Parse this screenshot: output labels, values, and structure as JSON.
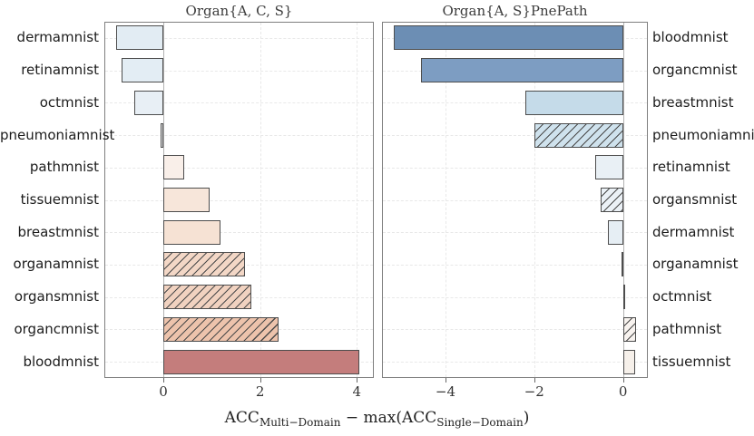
{
  "figure": {
    "background": "#ffffff",
    "xlabel_parts": [
      {
        "text": "ACC",
        "sub": false
      },
      {
        "text": "Multi−Domain",
        "sub": true
      },
      {
        "text": " − max(ACC",
        "sub": false
      },
      {
        "text": "Single−Domain",
        "sub": true
      },
      {
        "text": ")",
        "sub": false
      }
    ]
  },
  "style": {
    "panel_border": "#7f7f7f",
    "bar_border": "#4d4d4d",
    "hatch_line": "#4a4a4a",
    "grid_color": "#e8e8e8",
    "zero_line": "#b2b2b2",
    "tick_color": "#666666",
    "title_color": "#3c3c3c",
    "label_color": "#1c1c1c"
  },
  "chart_data": [
    {
      "type": "bar",
      "orientation": "horizontal",
      "title": "Organ{A, C, S}",
      "label_side": "left",
      "xlim": [
        -1.22,
        4.35
      ],
      "grid": true,
      "xticks": [
        {
          "v": 0,
          "label": "0"
        },
        {
          "v": 2,
          "label": "2"
        },
        {
          "v": 4,
          "label": "4"
        }
      ],
      "bars": [
        {
          "label": "dermamnist",
          "value": -0.97,
          "color": "#e2ecf3",
          "hatch": false
        },
        {
          "label": "retinamnist",
          "value": -0.86,
          "color": "#e3edf4",
          "hatch": false
        },
        {
          "label": "octmnist",
          "value": -0.61,
          "color": "#e8eff5",
          "hatch": false
        },
        {
          "label": "pneumoniamnist",
          "value": -0.06,
          "color": "#f4f6f7",
          "hatch": false
        },
        {
          "label": "pathmnist",
          "value": 0.43,
          "color": "#f9efe9",
          "hatch": false
        },
        {
          "label": "tissuemnist",
          "value": 0.95,
          "color": "#f7e6da",
          "hatch": false
        },
        {
          "label": "breastmnist",
          "value": 1.18,
          "color": "#f6e2d4",
          "hatch": false
        },
        {
          "label": "organamnist",
          "value": 1.69,
          "color": "#f3d7c6",
          "hatch": true
        },
        {
          "label": "organsmnist",
          "value": 1.81,
          "color": "#f1d2c0",
          "hatch": true
        },
        {
          "label": "organcmnist",
          "value": 2.38,
          "color": "#edc3ac",
          "hatch": true
        },
        {
          "label": "bloodmnist",
          "value": 4.05,
          "color": "#c47d7c",
          "hatch": false
        }
      ]
    },
    {
      "type": "bar",
      "orientation": "horizontal",
      "title": "Organ{A, S}PnePath",
      "label_side": "right",
      "xlim": [
        -5.43,
        0.56
      ],
      "grid": true,
      "xticks": [
        {
          "v": -4,
          "label": "−4"
        },
        {
          "v": -2,
          "label": "−2"
        },
        {
          "v": 0,
          "label": "0"
        }
      ],
      "bars": [
        {
          "label": "bloodmnist",
          "value": -5.16,
          "color": "#6c8eb4",
          "hatch": false
        },
        {
          "label": "organcmnist",
          "value": -4.55,
          "color": "#7d9dc2",
          "hatch": false
        },
        {
          "label": "breastmnist",
          "value": -2.2,
          "color": "#c5dbe9",
          "hatch": false
        },
        {
          "label": "pneumoniamnist",
          "value": -2.0,
          "color": "#cfe2ed",
          "hatch": true
        },
        {
          "label": "retinamnist",
          "value": -0.63,
          "color": "#e9f0f5",
          "hatch": false
        },
        {
          "label": "organsmnist",
          "value": -0.51,
          "color": "#ebf1f6",
          "hatch": true
        },
        {
          "label": "dermamnist",
          "value": -0.34,
          "color": "#e6eef4",
          "hatch": false
        },
        {
          "label": "organamnist",
          "value": -0.04,
          "color": "#ffffff",
          "hatch": true
        },
        {
          "label": "octmnist",
          "value": 0.05,
          "color": "#fbfcfd",
          "hatch": false
        },
        {
          "label": "pathmnist",
          "value": 0.3,
          "color": "#f8f3ef",
          "hatch": true
        },
        {
          "label": "tissuemnist",
          "value": 0.28,
          "color": "#f6f0ea",
          "hatch": false
        }
      ]
    }
  ]
}
